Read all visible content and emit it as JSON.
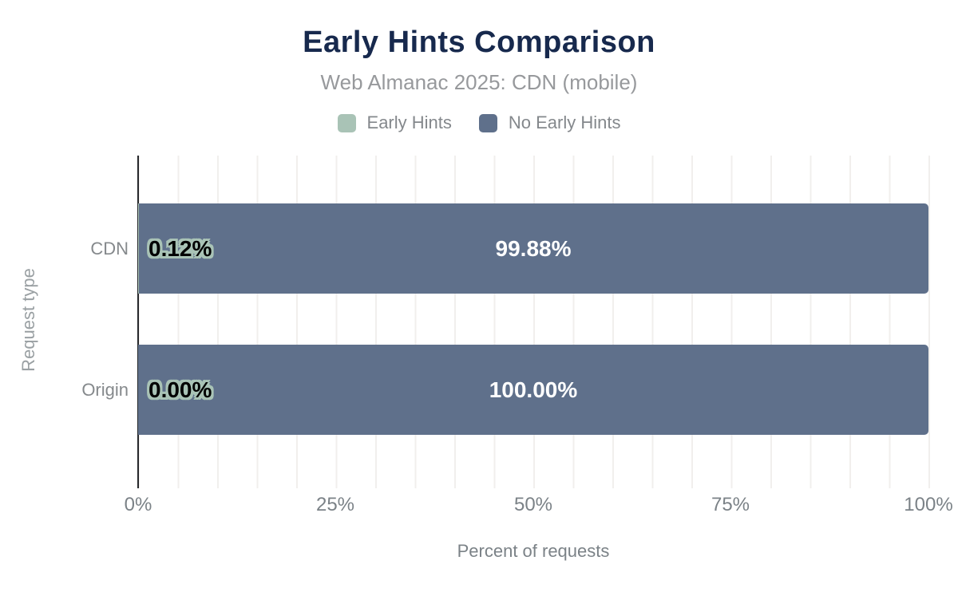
{
  "chart_data": {
    "type": "bar",
    "orientation": "horizontal",
    "stacked": true,
    "title": "Early Hints Comparison",
    "subtitle": "Web Almanac 2025: CDN (mobile)",
    "xlabel": "Percent of requests",
    "ylabel": "Request type",
    "categories": [
      "CDN",
      "Origin"
    ],
    "series": [
      {
        "name": "Early Hints",
        "color": "#a9c3b6",
        "values": [
          0.12,
          0.0
        ],
        "labels": [
          "0.12%",
          "0.00%"
        ]
      },
      {
        "name": "No Early Hints",
        "color": "#5f708b",
        "values": [
          99.88,
          100.0
        ],
        "labels": [
          "99.88%",
          "100.00%"
        ]
      }
    ],
    "x_ticks": [
      "0%",
      "25%",
      "50%",
      "75%",
      "100%"
    ],
    "xlim": [
      0,
      100
    ],
    "grid": true,
    "minor_grid_step_percent": 5,
    "legend_position": "top",
    "colors": {
      "title": "#17294d",
      "subtitle_text": "#97999c",
      "axis_text": "#7b8287",
      "bar_early_hints": "#a9c3b6",
      "bar_no_early_hints": "#5f708b",
      "gridline": "#f1efed",
      "axis_line": "#26282b",
      "background": "#ffffff"
    }
  }
}
